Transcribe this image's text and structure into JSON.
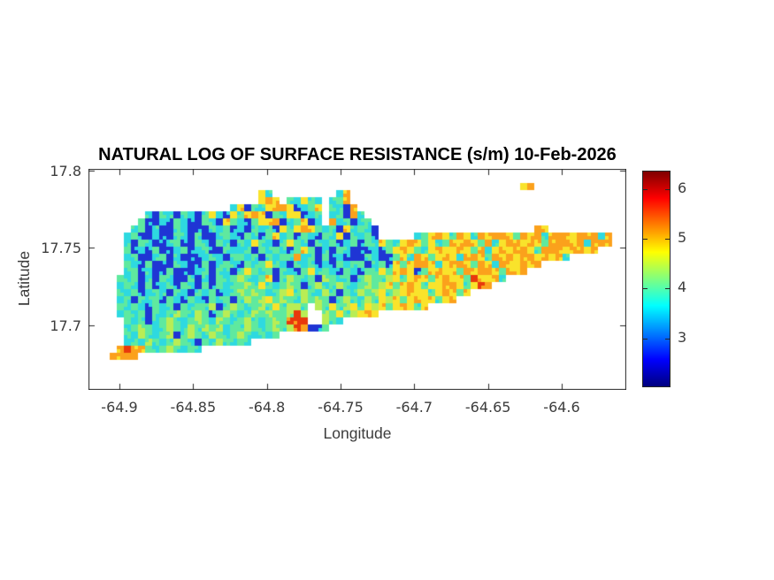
{
  "chart_data": {
    "type": "heatmap",
    "title": "NATURAL LOG OF SURFACE RESISTANCE (s/m) 10-Feb-2026",
    "xlabel": "Longitude",
    "ylabel": "Latitude",
    "x_tick_labels": [
      "-64.9",
      "-64.85",
      "-64.8",
      "-64.75",
      "-64.7",
      "-64.65",
      "-64.6"
    ],
    "x_tick_values": [
      -64.9,
      -64.85,
      -64.8,
      -64.75,
      -64.7,
      -64.65,
      -64.6
    ],
    "y_tick_labels": [
      "17.8",
      "17.75",
      "17.7"
    ],
    "y_tick_values": [
      17.8,
      17.75,
      17.7
    ],
    "xlim": [
      -64.921,
      -64.5562
    ],
    "ylim": [
      17.6583,
      17.8011
    ],
    "grid_on": false,
    "background": "#ffffff",
    "colorbar": {
      "colormap": "jet",
      "clim": [
        2.03,
        6.355
      ],
      "ticks": [
        6,
        5,
        4,
        3
      ],
      "tick_labels": [
        "6",
        "5",
        "4",
        "3"
      ],
      "stops": [
        {
          "pos": 0.0,
          "color": "#7f0000"
        },
        {
          "pos": 0.125,
          "color": "#ff0000"
        },
        {
          "pos": 0.375,
          "color": "#ffff00"
        },
        {
          "pos": 0.625,
          "color": "#00ffff"
        },
        {
          "pos": 0.875,
          "color": "#0000ff"
        },
        {
          "pos": 1.0,
          "color": "#00007f"
        }
      ]
    },
    "heatmap": {
      "note": "Island raster of ln(surface resistance); characters are value bins, ocean cells omitted",
      "grid_cols": 76,
      "grid_rows": 31,
      "palette": {
        "b": "#1f35d4",
        "c": "#2ed9e0",
        "g": "#5fe99f",
        "y": "#b9ed55",
        "Y": "#f9e32b",
        "o": "#fba11c",
        "r": "#e8380c"
      },
      "bin_values": {
        "b": 2.7,
        "c": 3.6,
        "g": 4.0,
        "y": 4.4,
        "Y": 4.8,
        "o": 5.3,
        "r": 5.9
      },
      "rows": [
        [],
        [],
        [
          [
            61,
            "Yo"
          ]
        ],
        [
          [
            24,
            "Yc"
          ],
          [
            35,
            "co"
          ]
        ],
        [
          [
            24,
            "YoY"
          ],
          [
            28,
            "gcYgc"
          ],
          [
            34,
            "cgo"
          ]
        ],
        [
          [
            20,
            "cYbgcYooYbcgY"
          ],
          [
            34,
            "gcbo"
          ]
        ],
        [
          [
            8,
            "cbgcbgcbgYcbYgYoYbgcYYbcg"
          ],
          [
            34,
            "cgboc"
          ]
        ],
        [
          [
            7,
            "gbbcbgcbbgcbYgcbgYYobcgYbc"
          ],
          [
            34,
            "ocgbcg"
          ]
        ],
        [
          [
            6,
            "cgbcbbgcbbbgcgbcbgcgbYgYoYgcgbYcgcb"
          ],
          [
            63,
            "oY"
          ]
        ],
        [
          [
            5,
            "cgbbcbbgcbgbbcgcbgcbgYcgbgcbgcYbgcgb"
          ],
          [
            46,
            "cgYoYgoYcoYooYgoYocoooYoooco"
          ]
        ],
        [
          [
            5,
            "cbgcbbcgbbgcbgcbgcYgcbgYgcbgcgbcgbgcYgcYoYgYcgoYoYgocYooYoYgoooYocooo"
          ]
        ],
        [
          [
            5,
            "gbcbgbbcgbcgbbgccgbgcgcbgYgbcbgcbbbcbgYoYgcYoYYoYgocYoYooYgoooYooYo"
          ]
        ],
        [
          [
            5,
            "cgbbcgbcbbbcgcbggcgbgcggocgbgbcbbbgcbbgYcoYgYoYcooYgoYoYooYoYoc"
          ]
        ],
        [
          [
            5,
            "gcbgbbbgcbbgbcgcbgcgYgcbgcgbcbgcggbcgbYgYooYcYooYgoYcoYYoYo"
          ]
        ],
        [
          [
            5,
            "cgbcbbgbbbcgbgcbgYgcgbgcbgYcgcbgcbggYgYoYbgYoYYgoYooYgoYo"
          ]
        ],
        [
          [
            4,
            "gcgbcbgcbbgbcbgcgygcgYbgygcgbygcgbgyggyYgYoYgYoYYgrYYoc"
          ]
        ],
        [
          [
            4,
            "cgcbgbcgbgcbgbgcggygYgcgygbgycgygcgygyYgYoYgYYooYgYro"
          ]
        ],
        [
          [
            4,
            "gcgbcgcbgcbgcgbcgygygcgyYgygcygbgcygyYgyYoYYgYoYgY"
          ]
        ],
        [
          [
            4,
            "cgbgcgbgcbgcbgcgbgygyYgygcygygbgygcygYyYgYoYYgYo"
          ]
        ],
        [
          [
            4,
            "gcgcbgcgbgcggybgygcgygYgyyg"
          ],
          [
            32,
            "ygYgyYgYyYgYoYgY"
          ]
        ],
        [
          [
            4,
            "cgcgbgcgygcygbgygcgygyggyry"
          ],
          [
            33,
            "ygYgyYoY"
          ]
        ],
        [
          [
            5,
            "gcgbcgygcgygcygcgygcgygrrr"
          ],
          [
            33,
            "ygc"
          ]
        ],
        [
          [
            5,
            "cgygcgygcygygycggygcgygyro"
          ],
          [
            31,
            "bbg"
          ]
        ],
        [
          [
            5,
            "gcygcgybgygcygcgygcgcg"
          ]
        ],
        [
          [
            5,
            "cgcygcgygcbgcygcgc"
          ]
        ],
        [
          [
            4,
            "oroogcgygcgc"
          ]
        ],
        [
          [
            3,
            "oooo"
          ]
        ],
        [],
        [],
        [],
        []
      ]
    }
  }
}
